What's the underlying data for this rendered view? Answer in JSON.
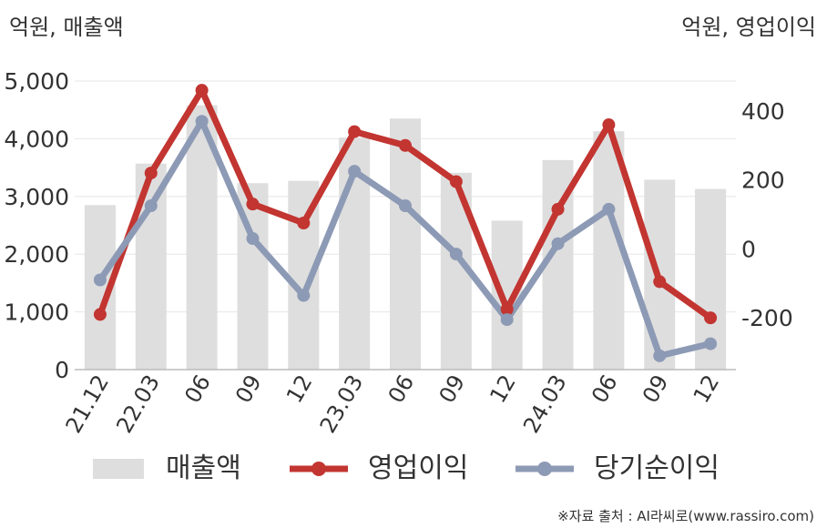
{
  "chart_data": {
    "type": "bar+line",
    "left_axis_unit": "억원, 매출액",
    "right_axis_unit": "억원, 영업이익",
    "source": "※자료 출처 : AI라씨로(www.rassiro.com)",
    "categories": [
      "21.12",
      "22.03",
      "06",
      "09",
      "12",
      "23.03",
      "06",
      "09",
      "12",
      "24.03",
      "06",
      "09",
      "12"
    ],
    "left_ticks": [
      "0",
      "1,000",
      "2,000",
      "3,000",
      "4,000",
      "5,000"
    ],
    "right_ticks": [
      "-200",
      "0",
      "200",
      "400"
    ],
    "left_ylim": [
      0,
      5000
    ],
    "right_ylim": [
      -350,
      500
    ],
    "grid": true,
    "legend_position": "bottom",
    "bars": {
      "name": "매출액",
      "color": "#dedede",
      "axis": "left",
      "values": [
        2850,
        3570,
        4580,
        3230,
        3270,
        4020,
        4350,
        3410,
        2580,
        3630,
        4130,
        3290,
        3130
      ]
    },
    "series": [
      {
        "name": "영업이익",
        "color": "#c23531",
        "axis": "right",
        "values": [
          -190,
          220,
          460,
          130,
          75,
          340,
          300,
          195,
          -175,
          115,
          360,
          -95,
          -200
        ]
      },
      {
        "name": "당기순이익",
        "color": "#8d9ab5",
        "axis": "right",
        "values": [
          -90,
          125,
          370,
          30,
          -135,
          225,
          125,
          -15,
          -205,
          15,
          115,
          -310,
          -275
        ]
      }
    ]
  }
}
